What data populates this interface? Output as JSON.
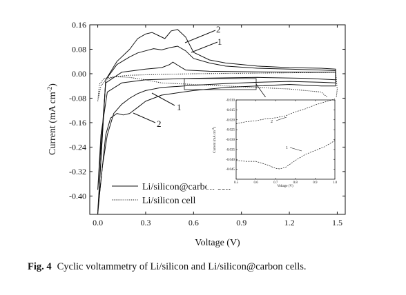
{
  "chart_data": {
    "type": "line",
    "xlabel": "Voltage (V)",
    "ylabel_main": "Current (mA cm",
    "ylabel_sup": "-2",
    "ylabel_close": ")",
    "xlim": [
      -0.05,
      1.55
    ],
    "ylim": [
      -0.46,
      0.16
    ],
    "xticks": [
      "0.0",
      "0.3",
      "0.6",
      "0.9",
      "1.2",
      "1.5"
    ],
    "yticks": [
      "0.16",
      "0.08",
      "0.00",
      "-0.08",
      "-0.16",
      "-0.24",
      "-0.32",
      "-0.40"
    ],
    "xtick_values": [
      0.0,
      0.3,
      0.6,
      0.9,
      1.2,
      1.5
    ],
    "ytick_values": [
      0.16,
      0.08,
      0.0,
      -0.08,
      -0.16,
      -0.24,
      -0.32,
      -0.4
    ],
    "legend": [
      "Li/silicon@carbon cell",
      "Li/silicon cell"
    ],
    "legend_position": "bottom-left",
    "annotations": [
      "2",
      "1",
      "1",
      "2"
    ],
    "series": [
      {
        "style": "solid",
        "legend_index": 0,
        "cycle": "2",
        "x": [
          0.0,
          0.05,
          0.12,
          0.2,
          0.25,
          0.3,
          0.34,
          0.38,
          0.42,
          0.46,
          0.5,
          0.55,
          0.6,
          0.7,
          0.8,
          1.0,
          1.2,
          1.4,
          1.49,
          1.49,
          1.4,
          1.2,
          0.8,
          0.6,
          0.4,
          0.3,
          0.25,
          0.2,
          0.16,
          0.12,
          0.08,
          0.05,
          0.03,
          0.01,
          0.0
        ],
        "y": [
          -0.46,
          -0.02,
          0.04,
          0.08,
          0.115,
          0.13,
          0.135,
          0.125,
          0.115,
          0.14,
          0.145,
          0.12,
          0.07,
          0.045,
          0.035,
          0.025,
          0.02,
          0.018,
          0.015,
          -0.04,
          -0.04,
          -0.035,
          -0.045,
          -0.055,
          -0.07,
          -0.09,
          -0.11,
          -0.13,
          -0.135,
          -0.13,
          -0.145,
          -0.2,
          -0.3,
          -0.4,
          -0.46
        ]
      },
      {
        "style": "solid",
        "legend_index": 0,
        "cycle": "1",
        "x": [
          0.0,
          0.05,
          0.12,
          0.2,
          0.25,
          0.3,
          0.35,
          0.4,
          0.45,
          0.5,
          0.55,
          0.6,
          0.7,
          0.8,
          1.0,
          1.2,
          1.4,
          1.49,
          1.49,
          1.4,
          1.2,
          1.0,
          0.8,
          0.6,
          0.4,
          0.3,
          0.25,
          0.2,
          0.15,
          0.1,
          0.06,
          0.03,
          0.01,
          0.0
        ],
        "y": [
          -0.45,
          -0.02,
          0.03,
          0.055,
          0.068,
          0.075,
          0.082,
          0.078,
          0.085,
          0.09,
          0.075,
          0.05,
          0.035,
          0.025,
          0.018,
          0.015,
          0.012,
          0.01,
          -0.03,
          -0.028,
          -0.025,
          -0.028,
          -0.032,
          -0.038,
          -0.045,
          -0.055,
          -0.065,
          -0.08,
          -0.1,
          -0.13,
          -0.2,
          -0.3,
          -0.4,
          -0.45
        ]
      },
      {
        "style": "solid",
        "legend_index": 0,
        "cycle": "",
        "x": [
          0.0,
          0.05,
          0.15,
          0.3,
          0.4,
          0.45,
          0.47,
          0.5,
          0.55,
          0.7,
          1.0,
          1.3,
          1.49,
          1.49,
          1.3,
          1.0,
          0.6,
          0.3,
          0.15,
          0.06,
          0.02,
          0.0
        ],
        "y": [
          -0.38,
          -0.03,
          0.005,
          0.015,
          0.02,
          0.03,
          0.038,
          0.028,
          0.012,
          0.008,
          0.006,
          0.005,
          0.005,
          -0.02,
          -0.015,
          -0.012,
          -0.015,
          -0.02,
          -0.03,
          -0.06,
          -0.2,
          -0.38
        ]
      },
      {
        "style": "dotted",
        "legend_index": 1,
        "cycle": "",
        "x": [
          0.0,
          0.02,
          0.05,
          0.1,
          0.2,
          0.4,
          0.6,
          0.8,
          1.0,
          1.2,
          1.4,
          1.49,
          1.5,
          1.49,
          1.4,
          1.2,
          1.0,
          0.8,
          0.6,
          0.4,
          0.3,
          0.2,
          0.12,
          0.08,
          0.04,
          0.01,
          0.0
        ],
        "y": [
          -0.09,
          -0.04,
          -0.02,
          -0.01,
          -0.005,
          -0.002,
          0.0,
          0.001,
          0.002,
          0.003,
          0.004,
          0.005,
          -0.05,
          -0.1,
          -0.06,
          -0.05,
          -0.045,
          -0.04,
          -0.035,
          -0.03,
          -0.02,
          -0.012,
          -0.01,
          -0.012,
          -0.015,
          -0.035,
          -0.09
        ]
      }
    ],
    "inset": {
      "xlabel": "Voltage (V)",
      "ylabel_main": "Current (mA cm",
      "ylabel_sup": "-2",
      "ylabel_close": ")",
      "xlim": [
        0.5,
        1.0
      ],
      "ylim": [
        -0.05,
        -0.01
      ],
      "xticks": [
        "0.5",
        "0.6",
        "0.7",
        "0.8",
        "0.9",
        "1.0"
      ],
      "yticks": [
        "-0.010",
        "-0.015",
        "-0.020",
        "-0.025",
        "-0.030",
        "-0.035",
        "-0.040",
        "-0.045"
      ],
      "xtick_values": [
        0.5,
        0.6,
        0.7,
        0.8,
        0.9,
        1.0
      ],
      "ytick_values": [
        -0.01,
        -0.015,
        -0.02,
        -0.025,
        -0.03,
        -0.035,
        -0.04,
        -0.045
      ],
      "annotations": [
        "2",
        "1"
      ],
      "series": [
        {
          "style": "dashed",
          "cycle": "2",
          "x": [
            0.5,
            0.55,
            0.6,
            0.65,
            0.7,
            0.75,
            0.8,
            0.85,
            0.9,
            0.95,
            1.0
          ],
          "y": [
            -0.022,
            -0.021,
            -0.0205,
            -0.0195,
            -0.019,
            -0.018,
            -0.016,
            -0.0145,
            -0.0125,
            -0.011,
            -0.0095
          ]
        },
        {
          "style": "dashed",
          "cycle": "1",
          "x": [
            0.5,
            0.55,
            0.6,
            0.65,
            0.7,
            0.72,
            0.75,
            0.8,
            0.85,
            0.9,
            0.95,
            1.0
          ],
          "y": [
            -0.0405,
            -0.041,
            -0.041,
            -0.0425,
            -0.0445,
            -0.0448,
            -0.044,
            -0.0405,
            -0.0375,
            -0.0355,
            -0.0335,
            -0.0305
          ]
        }
      ]
    }
  },
  "caption": {
    "label": "Fig. 4",
    "text": "Cyclic voltammetry of Li/silicon and Li/silicon@carbon cells."
  }
}
